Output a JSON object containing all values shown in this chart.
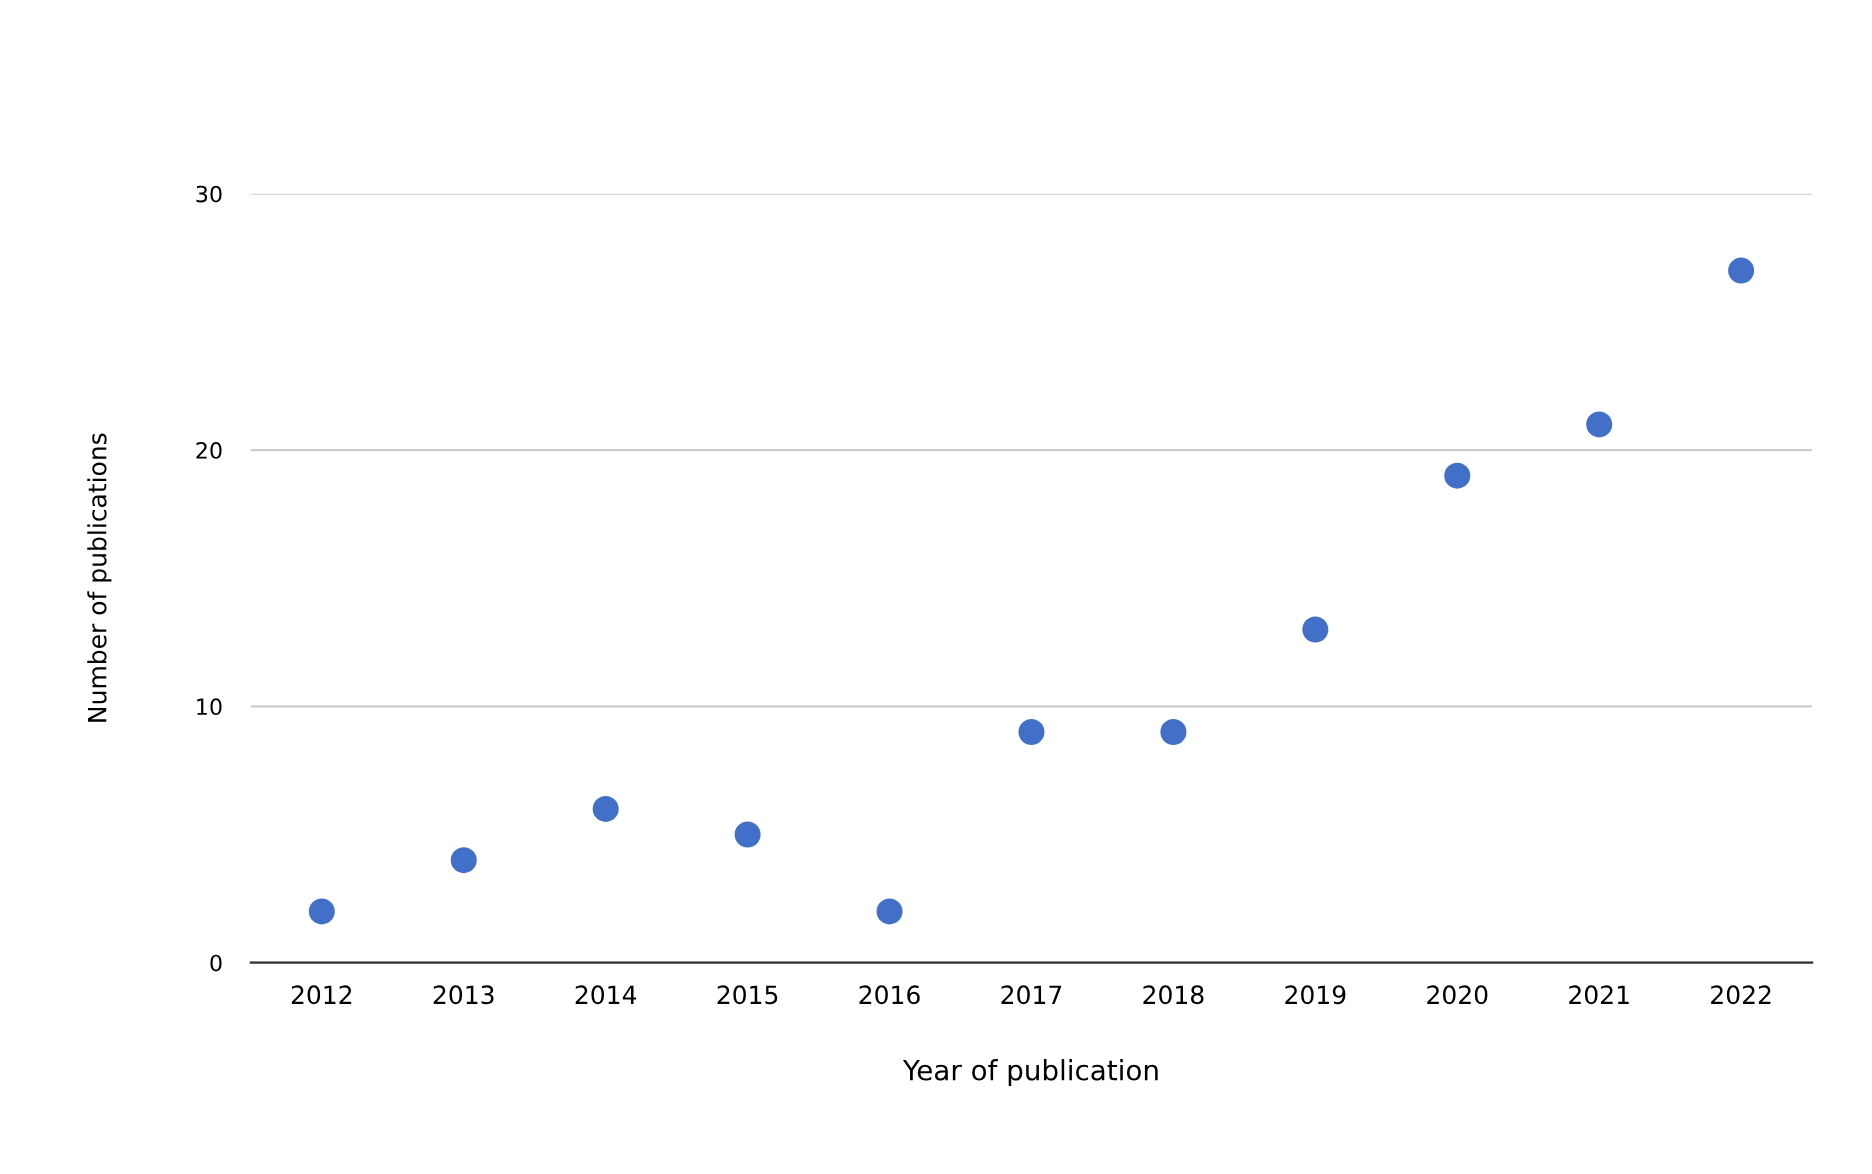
{
  "chart_data": {
    "type": "scatter",
    "xlabel": "Year of publication",
    "ylabel": "Number of publications",
    "categories": [
      "2012",
      "2013",
      "2014",
      "2015",
      "2016",
      "2017",
      "2018",
      "2019",
      "2020",
      "2021",
      "2022"
    ],
    "series": [
      {
        "color": "#4270c8",
        "values": [
          2,
          4,
          6,
          5,
          2,
          9,
          9,
          13,
          19,
          21,
          27
        ]
      }
    ],
    "ylim": [
      0,
      30
    ],
    "yticks": [
      0,
      10,
      20,
      30
    ],
    "grid": "y",
    "marker": "circle",
    "legend": false
  }
}
